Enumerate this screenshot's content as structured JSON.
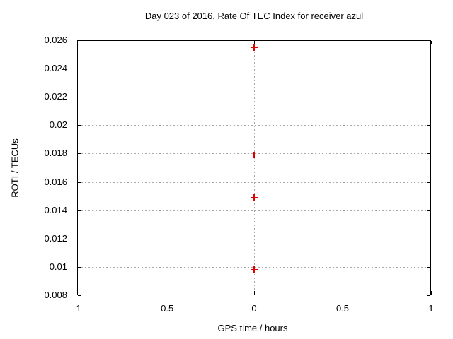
{
  "chart_data": {
    "type": "scatter",
    "title": "Day 023 of 2016, Rate Of TEC Index for receiver azul",
    "xlabel": "GPS time / hours",
    "ylabel": "ROTI / TECUs",
    "xlim": [
      -1,
      1
    ],
    "ylim": [
      0.008,
      0.026
    ],
    "xticks": [
      -1,
      -0.5,
      0,
      0.5,
      1
    ],
    "xtick_labels": [
      "-1",
      "-0.5",
      "0",
      "0.5",
      "1"
    ],
    "yticks": [
      0.008,
      0.01,
      0.012,
      0.014,
      0.016,
      0.018,
      0.02,
      0.022,
      0.024,
      0.026
    ],
    "ytick_labels": [
      "0.008",
      "0.01",
      "0.012",
      "0.014",
      "0.016",
      "0.018",
      "0.02",
      "0.022",
      "0.024",
      "0.026"
    ],
    "grid": true,
    "legend": "none",
    "marker": "plus",
    "colors": {
      "marker": "#e00000",
      "grid": "#a8a8a8",
      "border": "#000000",
      "background": "#ffffff"
    },
    "series": [
      {
        "name": "ROTI",
        "points": [
          {
            "x": 0,
            "y": 0.0255
          },
          {
            "x": 0,
            "y": 0.0179
          },
          {
            "x": 0,
            "y": 0.0149
          },
          {
            "x": 0,
            "y": 0.0098
          }
        ]
      }
    ]
  }
}
